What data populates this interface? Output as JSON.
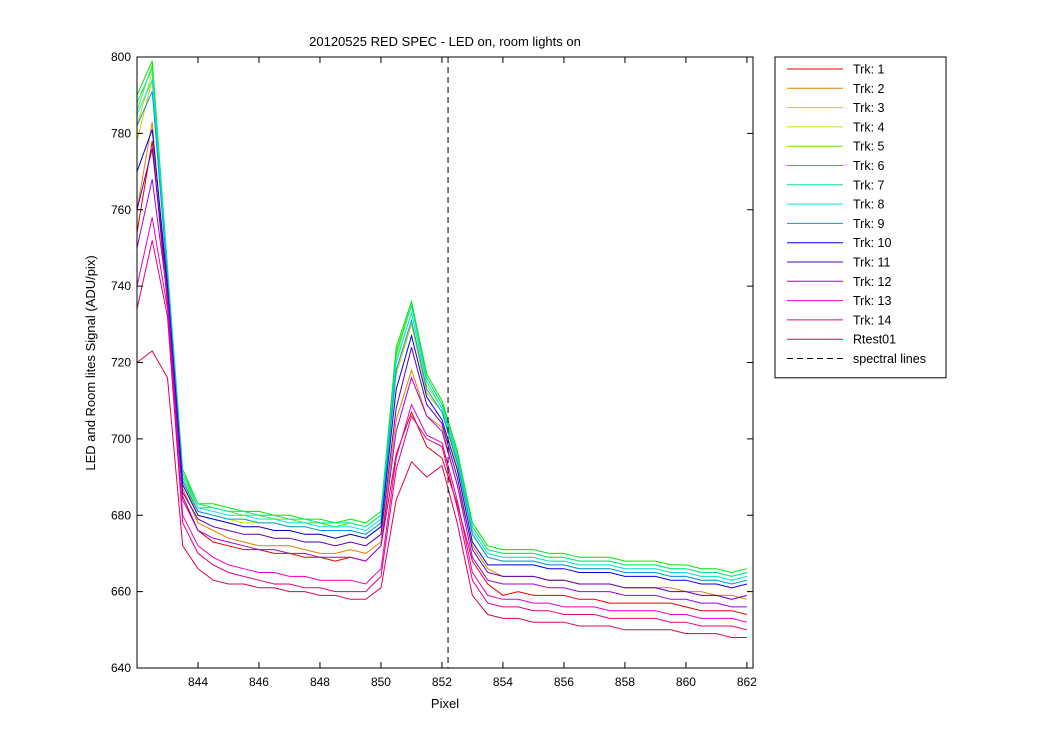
{
  "chart_data": {
    "type": "line",
    "title": "20120525 RED SPEC - LED on, room lights on",
    "xlabel": "Pixel",
    "ylabel": "LED and Room lites Signal (ADU/pix)",
    "xlim": [
      842,
      862.2
    ],
    "ylim": [
      640,
      800
    ],
    "xticks": [
      844,
      846,
      848,
      850,
      852,
      854,
      856,
      858,
      860,
      862
    ],
    "yticks": [
      640,
      660,
      680,
      700,
      720,
      740,
      760,
      780,
      800
    ],
    "grid": false,
    "legend_position": "outside-right-top",
    "x": [
      842.0,
      842.5,
      843.0,
      843.5,
      844.0,
      844.5,
      845.0,
      845.5,
      846.0,
      846.5,
      847.0,
      847.5,
      848.0,
      848.5,
      849.0,
      849.5,
      850.0,
      850.5,
      851.0,
      851.5,
      852.0,
      852.5,
      853.0,
      853.5,
      854.0,
      854.5,
      855.0,
      855.5,
      856.0,
      856.5,
      857.0,
      857.5,
      858.0,
      858.5,
      859.0,
      859.5,
      860.0,
      860.5,
      861.0,
      861.5,
      862.0
    ],
    "series": [
      {
        "name": "Trk: 1",
        "color": "#e60000",
        "values": [
          754,
          778,
          735,
          685,
          676,
          673,
          672,
          671,
          671,
          670,
          670,
          669,
          669,
          668,
          669,
          668,
          672,
          696,
          707,
          698,
          695,
          683,
          668,
          662,
          659,
          660,
          659,
          659,
          659,
          658,
          658,
          657,
          657,
          657,
          657,
          657,
          656,
          655,
          655,
          655,
          654
        ]
      },
      {
        "name": "Trk: 2",
        "color": "#e68000",
        "values": [
          760,
          783,
          737,
          687,
          678,
          676,
          674,
          673,
          672,
          672,
          672,
          671,
          670,
          670,
          671,
          670,
          673,
          705,
          718,
          706,
          703,
          688,
          672,
          666,
          664,
          664,
          664,
          663,
          663,
          662,
          662,
          662,
          661,
          661,
          661,
          661,
          660,
          660,
          659,
          659,
          658
        ]
      },
      {
        "name": "Trk: 3",
        "color": "#d9c800",
        "values": [
          778,
          794,
          742,
          689,
          680,
          679,
          678,
          677,
          677,
          676,
          676,
          675,
          675,
          674,
          675,
          674,
          677,
          717,
          730,
          712,
          707,
          693,
          675,
          669,
          668,
          668,
          668,
          667,
          667,
          666,
          666,
          666,
          665,
          665,
          665,
          664,
          664,
          663,
          663,
          662,
          663
        ]
      },
      {
        "name": "Trk: 4",
        "color": "#bfe600",
        "values": [
          782,
          796,
          743,
          690,
          681,
          680,
          679,
          678,
          678,
          678,
          677,
          677,
          676,
          676,
          676,
          675,
          678,
          721,
          733,
          714,
          708,
          695,
          676,
          670,
          669,
          669,
          669,
          668,
          668,
          667,
          667,
          667,
          666,
          666,
          666,
          665,
          665,
          664,
          664,
          663,
          664
        ]
      },
      {
        "name": "Trk: 5",
        "color": "#66e600",
        "values": [
          786,
          798,
          744,
          691,
          682,
          682,
          681,
          680,
          680,
          679,
          679,
          678,
          678,
          677,
          678,
          677,
          680,
          723,
          735,
          716,
          709,
          696,
          677,
          671,
          670,
          670,
          670,
          669,
          669,
          668,
          668,
          668,
          667,
          667,
          667,
          666,
          666,
          665,
          665,
          664,
          665
        ]
      },
      {
        "name": "Trk: 6",
        "color": "#00e600",
        "values": [
          790,
          799,
          745,
          692,
          683,
          683,
          682,
          681,
          681,
          680,
          680,
          679,
          679,
          678,
          679,
          678,
          681,
          724,
          736,
          717,
          710,
          697,
          678,
          672,
          671,
          671,
          671,
          670,
          670,
          669,
          669,
          669,
          668,
          668,
          668,
          667,
          667,
          666,
          666,
          665,
          666
        ]
      },
      {
        "name": "Trk: 7",
        "color": "#00e699",
        "values": [
          788,
          797,
          744,
          691,
          683,
          682,
          681,
          681,
          680,
          680,
          679,
          679,
          678,
          678,
          678,
          677,
          680,
          722,
          735,
          716,
          709,
          696,
          677,
          671,
          670,
          670,
          670,
          669,
          669,
          668,
          668,
          668,
          667,
          667,
          667,
          666,
          666,
          665,
          665,
          664,
          665
        ]
      },
      {
        "name": "Trk: 8",
        "color": "#00e6e6",
        "values": [
          785,
          794,
          743,
          690,
          682,
          681,
          680,
          680,
          679,
          679,
          678,
          678,
          677,
          677,
          677,
          676,
          679,
          720,
          733,
          715,
          708,
          695,
          676,
          670,
          669,
          669,
          669,
          668,
          668,
          667,
          667,
          667,
          666,
          666,
          666,
          665,
          665,
          664,
          664,
          663,
          664
        ]
      },
      {
        "name": "Trk: 9",
        "color": "#0099e6",
        "values": [
          782,
          791,
          742,
          689,
          681,
          680,
          679,
          679,
          678,
          678,
          677,
          677,
          676,
          676,
          676,
          675,
          678,
          718,
          731,
          713,
          707,
          694,
          675,
          669,
          668,
          668,
          668,
          667,
          667,
          666,
          666,
          666,
          665,
          665,
          665,
          664,
          664,
          663,
          663,
          662,
          663
        ]
      },
      {
        "name": "Trk: 10",
        "color": "#0000e6",
        "values": [
          770,
          781,
          740,
          688,
          680,
          679,
          678,
          677,
          677,
          676,
          676,
          675,
          675,
          674,
          675,
          674,
          677,
          713,
          727,
          711,
          705,
          692,
          673,
          667,
          667,
          667,
          667,
          666,
          666,
          665,
          665,
          665,
          664,
          664,
          664,
          663,
          663,
          662,
          662,
          661,
          662
        ]
      },
      {
        "name": "Trk: 11",
        "color": "#5a00b3",
        "values": [
          760,
          776,
          739,
          686,
          679,
          677,
          676,
          675,
          675,
          674,
          674,
          673,
          673,
          672,
          673,
          672,
          675,
          708,
          724,
          709,
          704,
          690,
          671,
          665,
          664,
          664,
          664,
          663,
          663,
          662,
          662,
          662,
          661,
          661,
          661,
          660,
          660,
          659,
          659,
          658,
          659
        ]
      },
      {
        "name": "Trk: 12",
        "color": "#a000e6",
        "values": [
          750,
          768,
          737,
          684,
          676,
          674,
          673,
          672,
          671,
          671,
          670,
          670,
          669,
          669,
          669,
          668,
          672,
          702,
          716,
          706,
          702,
          688,
          669,
          663,
          662,
          662,
          662,
          661,
          661,
          660,
          660,
          660,
          659,
          659,
          659,
          658,
          658,
          657,
          657,
          656,
          656
        ]
      },
      {
        "name": "Trk: 13",
        "color": "#e600c8",
        "values": [
          740,
          758,
          734,
          680,
          672,
          669,
          667,
          666,
          665,
          665,
          664,
          664,
          663,
          663,
          663,
          662,
          666,
          695,
          709,
          701,
          699,
          684,
          665,
          659,
          658,
          658,
          657,
          657,
          656,
          656,
          656,
          655,
          655,
          655,
          655,
          654,
          654,
          653,
          653,
          653,
          652
        ]
      },
      {
        "name": "Trk: 14",
        "color": "#e6007a",
        "values": [
          734,
          752,
          732,
          678,
          670,
          667,
          665,
          664,
          663,
          662,
          662,
          661,
          661,
          660,
          660,
          660,
          664,
          692,
          706,
          700,
          698,
          682,
          663,
          657,
          656,
          656,
          655,
          655,
          654,
          654,
          654,
          653,
          653,
          653,
          653,
          652,
          652,
          651,
          651,
          651,
          650
        ]
      },
      {
        "name": "Rtest01",
        "color": "#e0005a",
        "values": [
          720,
          723,
          716,
          672,
          666,
          663,
          662,
          662,
          661,
          661,
          660,
          660,
          659,
          659,
          658,
          658,
          661,
          684,
          694,
          690,
          693,
          678,
          659,
          654,
          653,
          653,
          652,
          652,
          652,
          651,
          651,
          651,
          650,
          650,
          650,
          650,
          649,
          649,
          649,
          648,
          648
        ]
      }
    ],
    "vline": {
      "x": 852.2,
      "name": "spectral lines",
      "color": "#000000",
      "dash": "dashed"
    }
  }
}
